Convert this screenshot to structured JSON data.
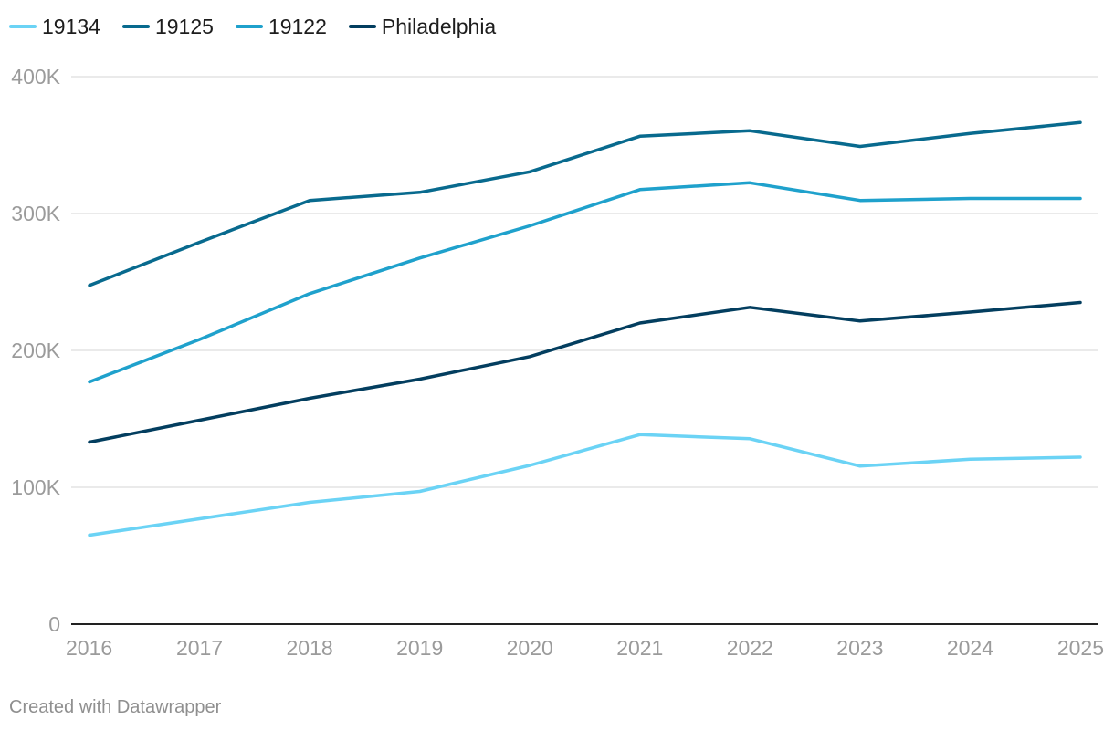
{
  "chart_data": {
    "type": "line",
    "x": [
      "2016",
      "2017",
      "2018",
      "2019",
      "2020",
      "2021",
      "2022",
      "2023",
      "2024",
      "2025"
    ],
    "ylim": [
      0,
      400000
    ],
    "yticks": [
      0,
      100000,
      200000,
      300000,
      400000
    ],
    "ytick_labels": [
      "0",
      "100K",
      "200K",
      "300K",
      "400K"
    ],
    "grid": true,
    "legend_position": "top-left",
    "series": [
      {
        "name": "19134",
        "color": "#6bd3f5",
        "values": [
          65000,
          77000,
          89000,
          97000,
          116000,
          138500,
          135500,
          115500,
          120500,
          122000
        ]
      },
      {
        "name": "19125",
        "color": "#086a8e",
        "values": [
          247500,
          279000,
          309500,
          315500,
          330500,
          356500,
          360500,
          349000,
          358500,
          366500
        ]
      },
      {
        "name": "19122",
        "color": "#1fa1cc",
        "values": [
          177000,
          208000,
          241500,
          267500,
          291000,
          317500,
          322500,
          309500,
          311000,
          311000
        ]
      },
      {
        "name": "Philadelphia",
        "color": "#033e5f",
        "values": [
          133000,
          149000,
          165000,
          179000,
          195500,
          220000,
          231500,
          221500,
          228000,
          235000
        ]
      }
    ],
    "footer": "Created with Datawrapper"
  }
}
